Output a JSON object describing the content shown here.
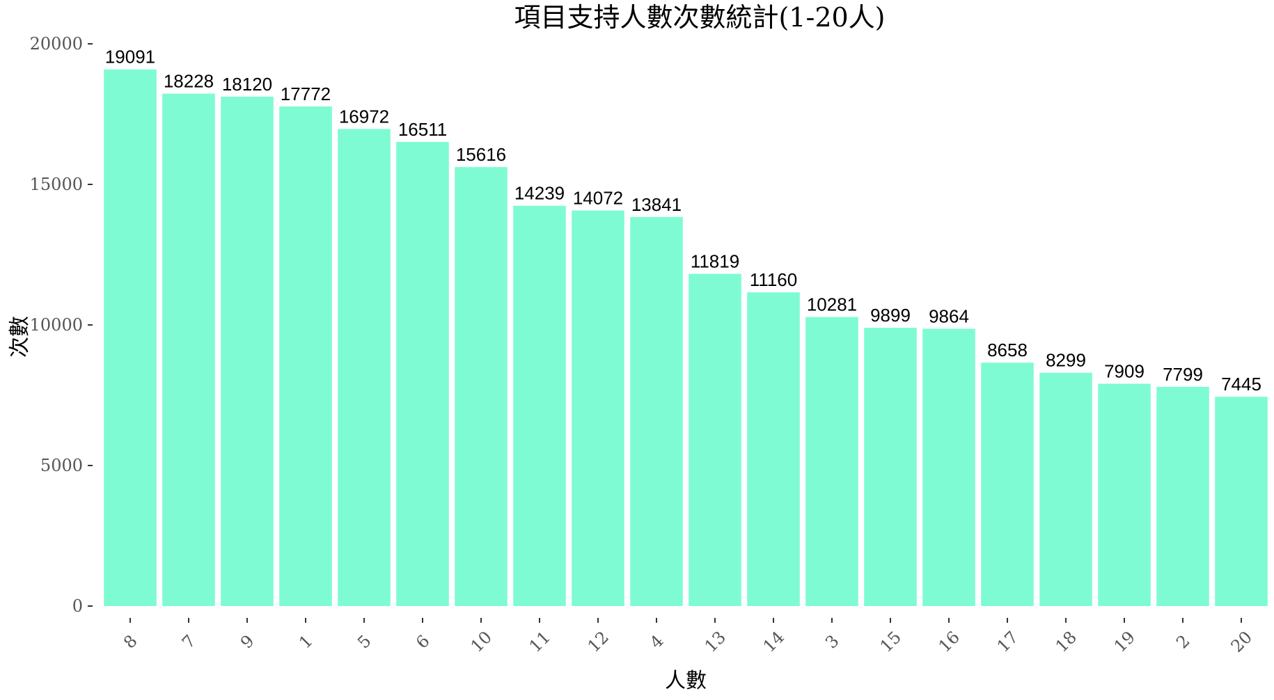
{
  "chart_data": {
    "type": "bar",
    "title": "項目支持人數次數統計(1-20人)",
    "xlabel": "人數",
    "ylabel": "次數",
    "categories": [
      "8",
      "7",
      "9",
      "1",
      "5",
      "6",
      "10",
      "11",
      "12",
      "4",
      "13",
      "14",
      "3",
      "15",
      "16",
      "17",
      "18",
      "19",
      "2",
      "20"
    ],
    "values": [
      19091,
      18228,
      18120,
      17772,
      16972,
      16511,
      15616,
      14239,
      14072,
      13841,
      11819,
      11160,
      10281,
      9899,
      9864,
      8658,
      8299,
      7909,
      7799,
      7445
    ],
    "data_labels": [
      "19091",
      "18228",
      "18120",
      "17772",
      "16972",
      "16511",
      "15616",
      "14239",
      "14072",
      "13841",
      "11819",
      "11160",
      "10281",
      "9899",
      "9864",
      "8658",
      "8299",
      "7909",
      "7799",
      "7445"
    ],
    "ylim": [
      0,
      20000
    ],
    "yticks": [
      0,
      5000,
      10000,
      15000,
      20000
    ],
    "ytick_labels": [
      "0",
      "5000",
      "10000",
      "15000",
      "20000"
    ],
    "grid": false,
    "bar_color": "#7FFBD4",
    "background": "#FFFFFF"
  }
}
